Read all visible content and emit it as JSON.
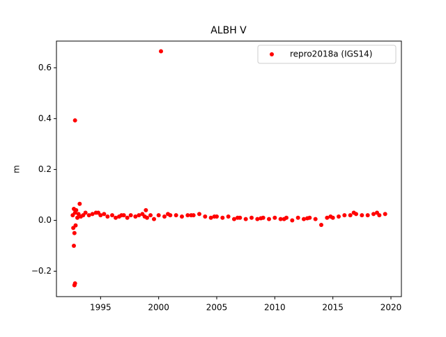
{
  "chart_data": {
    "type": "scatter",
    "title": "ALBH V",
    "y_label": "m",
    "x": [
      1992.6,
      1992.65,
      1992.7,
      1992.75,
      1992.8,
      1992.85,
      1992.9,
      1993.0,
      1993.1,
      1993.3,
      1993.5,
      1993.7,
      1994.0,
      1994.3,
      1994.6,
      1995.0,
      1995.3,
      1995.6,
      1996.0,
      1996.3,
      1996.6,
      1997.0,
      1997.3,
      1997.6,
      1998.0,
      1998.3,
      1998.6,
      1999.0,
      1999.3,
      1999.6,
      2000.0,
      2000.5,
      2001.0,
      2001.5,
      2002.0,
      2002.5,
      2003.0,
      2003.5,
      2004.0,
      2004.5,
      2005.0,
      2005.5,
      2006.0,
      2006.5,
      2007.0,
      2007.5,
      2008.0,
      2008.5,
      2009.0,
      2009.5,
      2010.0,
      2010.5,
      2011.0,
      2011.5,
      2012.0,
      2012.5,
      2013.0,
      2013.5,
      2014.5,
      2015.0,
      2015.5,
      2016.0,
      2016.5,
      2017.0,
      2017.5,
      2018.0,
      2018.5,
      2019.0,
      2019.5,
      1994.8,
      1996.8,
      1998.8,
      2000.8,
      2002.8,
      2004.8,
      2006.8,
      2008.8,
      2010.8,
      2012.8,
      2014.8,
      2016.8,
      2018.8,
      2000.2,
      1992.8,
      1992.7,
      1992.75,
      1992.8,
      1993.2,
      2014.0,
      1998.9
    ],
    "series": [
      {
        "name": "repro2018a (IGS14)",
        "color": "#ff0000",
        "values": [
          0.02,
          -0.03,
          0.045,
          -0.05,
          0.03,
          -0.02,
          0.04,
          0.01,
          0.025,
          0.015,
          0.02,
          0.03,
          0.02,
          0.025,
          0.03,
          0.02,
          0.025,
          0.015,
          0.02,
          0.01,
          0.015,
          0.02,
          0.01,
          0.02,
          0.015,
          0.02,
          0.025,
          0.01,
          0.02,
          0.005,
          0.02,
          0.015,
          0.02,
          0.02,
          0.015,
          0.02,
          0.02,
          0.025,
          0.015,
          0.01,
          0.015,
          0.01,
          0.015,
          0.005,
          0.01,
          0.005,
          0.01,
          0.005,
          0.01,
          0.005,
          0.01,
          0.005,
          0.01,
          0.0,
          0.01,
          0.005,
          0.01,
          0.005,
          0.01,
          0.01,
          0.015,
          0.02,
          0.02,
          0.025,
          0.02,
          0.02,
          0.025,
          0.02,
          0.025,
          0.03,
          0.02,
          0.015,
          0.025,
          0.02,
          0.015,
          0.01,
          0.008,
          0.005,
          0.008,
          0.015,
          0.03,
          0.03,
          0.665,
          0.393,
          -0.1,
          -0.255,
          -0.248,
          0.065,
          -0.018,
          0.04
        ]
      }
    ],
    "xlim": [
      1991.2,
      2020.9
    ],
    "xticks": [
      1995,
      2000,
      2005,
      2010,
      2015,
      2020
    ],
    "ylim": [
      -0.3,
      0.705
    ],
    "yticks": [
      {
        "value": -0.2,
        "label": "−0.2"
      },
      {
        "value": 0,
        "label": "0.0"
      },
      {
        "value": 0.2,
        "label": "0.2"
      },
      {
        "value": 0.4,
        "label": "0.4"
      },
      {
        "value": 0.6,
        "label": "0.6"
      }
    ],
    "legend": "upper right"
  }
}
